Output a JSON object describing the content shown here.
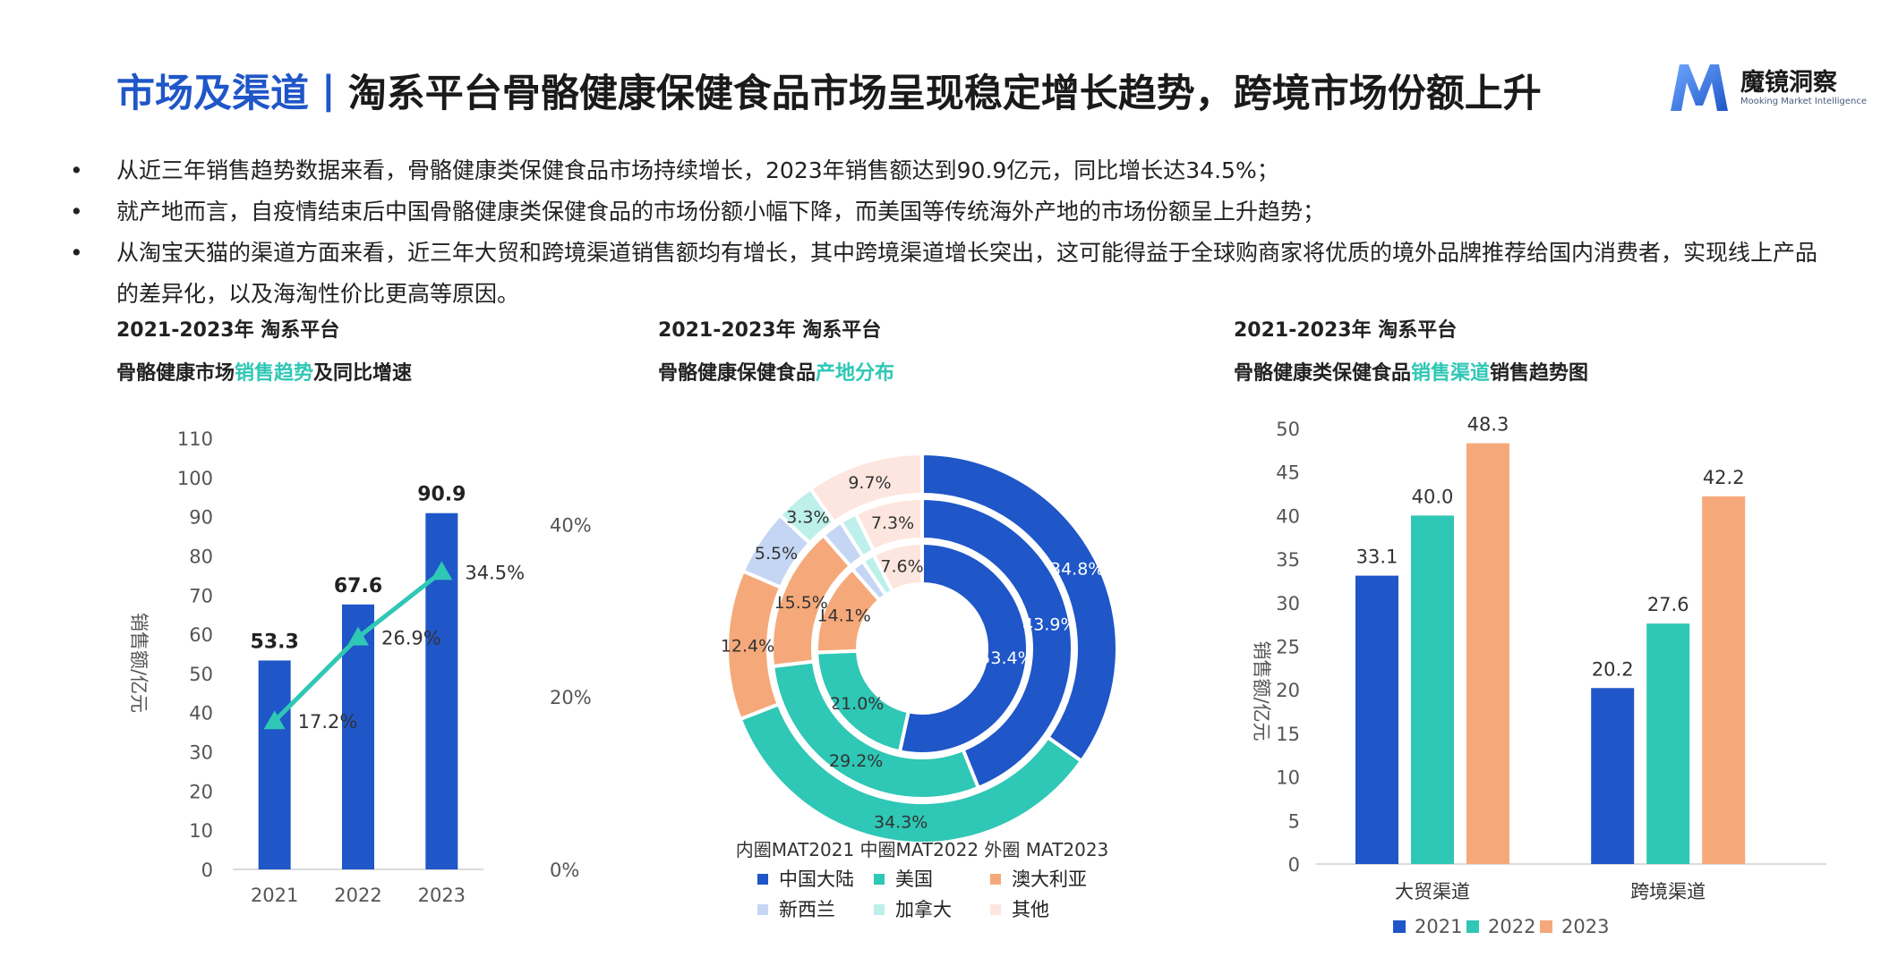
{
  "header": {
    "title_prefix": "市场及渠道",
    "title_divider": "|",
    "title_main": "淘系平台骨骼健康保健食品市场呈现稳定增长趋势，跨境市场份额上升",
    "logo_name": "魔镜洞察",
    "logo_tagline": "Mooking Market Intelligence"
  },
  "bullets": [
    {
      "marker": "•",
      "text": "从近三年销售趋势数据来看，骨骼健康类保健食品市场持续增长，2023年销售额达到90.9亿元，同比增长达34.5%；"
    },
    {
      "marker": "•",
      "text": "就产地而言，自疫情结束后中国骨骼健康类保健食品的市场份额小幅下降，而美国等传统海外产地的市场份额呈上升趋势；"
    },
    {
      "marker": "•",
      "text": "从淘宝天猫的渠道方面来看，近三年大贸和跨境渠道销售额均有增长，其中跨境渠道增长突出，这可能得益于全球购商家将优质的境外品牌推荐给国内消费者，实现线上产品的差异化，以及海淘性价比更高等原因。"
    }
  ],
  "colors": {
    "primary_blue": "#1f56c8",
    "teal": "#2fc7b5",
    "orange": "#f5a97a",
    "light_blue": "#c4d6f3",
    "light_teal": "#bdf0ea",
    "pink": "#fde6df",
    "axis_text": "#555555"
  },
  "panels": [
    {
      "line1": "2021-2023年 淘系平台",
      "line2_before": "骨骼健康市场",
      "line2_highlight": "销售趋势",
      "line2_after": "及同比增速"
    },
    {
      "line1": "2021-2023年 淘系平台",
      "line2_before": "骨骼健康保健食品",
      "line2_highlight": "产地分布",
      "line2_after": ""
    },
    {
      "line1": "2021-2023年 淘系平台",
      "line2_before": "骨骼健康类保健食品",
      "line2_highlight": "销售渠道",
      "line2_after": "销售趋势图"
    }
  ],
  "chart_data": [
    {
      "type": "bar",
      "categories": [
        "2021",
        "2022",
        "2023"
      ],
      "ylabel": "销售额/亿元",
      "ylim": [
        0,
        110
      ],
      "yticks": [
        "0",
        "10",
        "20",
        "30",
        "40",
        "50",
        "60",
        "70",
        "80",
        "90",
        "100",
        "110"
      ],
      "y2lim": [
        0,
        0.5
      ],
      "y2ticks": [
        {
          "value": 0,
          "label": "0%"
        },
        {
          "value": 0.2,
          "label": "20%"
        },
        {
          "value": 0.4,
          "label": "40%"
        }
      ],
      "series": [
        {
          "kind": "bar",
          "values": [
            53.3,
            67.6,
            90.9
          ],
          "labels": [
            "53.3",
            "67.6",
            "90.9"
          ],
          "color": "#1f56c8"
        },
        {
          "kind": "line",
          "axis": "secondary",
          "values": [
            0.172,
            0.269,
            0.345
          ],
          "labels": [
            "17.2%",
            "26.9%",
            "34.5%"
          ],
          "color": "#2fc7b5"
        }
      ],
      "grid": false
    },
    {
      "type": "pie",
      "style": "nested-donut",
      "caption": "内圈MAT2021 中圈MAT2022 外圈 MAT2023",
      "categories": [
        "中国大陆",
        "美国",
        "澳大利亚",
        "新西兰",
        "加拿大",
        "其他"
      ],
      "colors": [
        "#1f56c8",
        "#2fc7b5",
        "#f5a97a",
        "#c4d6f3",
        "#bdf0ea",
        "#fde6df"
      ],
      "rings": [
        {
          "name": "MAT2021",
          "values": [
            53.4,
            21.0,
            14.1,
            2.0,
            1.9,
            7.6
          ],
          "labels": [
            "53.4%",
            "21.0%",
            "14.1%",
            "",
            "",
            "7.6%"
          ]
        },
        {
          "name": "MAT2022",
          "values": [
            43.9,
            29.2,
            15.5,
            2.3,
            1.8,
            7.3
          ],
          "labels": [
            "43.9%",
            "29.2%",
            "15.5%",
            "",
            "",
            "7.3%"
          ]
        },
        {
          "name": "MAT2023",
          "values": [
            34.8,
            34.3,
            12.4,
            5.5,
            3.3,
            9.7
          ],
          "labels": [
            "34.8%",
            "34.3%",
            "12.4%",
            "5.5%",
            "3.3%",
            "9.7%"
          ]
        }
      ],
      "legend_position": "bottom"
    },
    {
      "type": "bar",
      "categories": [
        "大贸渠道",
        "跨境渠道"
      ],
      "ylabel": "销售额/亿元",
      "ylim": [
        0,
        50
      ],
      "yticks": [
        "0",
        "5",
        "10",
        "15",
        "20",
        "25",
        "30",
        "35",
        "40",
        "45",
        "50"
      ],
      "series": [
        {
          "name": "2021",
          "values": [
            33.1,
            20.2
          ],
          "labels": [
            "33.1",
            "20.2"
          ],
          "color": "#1f56c8"
        },
        {
          "name": "2022",
          "values": [
            40.0,
            27.6
          ],
          "labels": [
            "40.0",
            "27.6"
          ],
          "color": "#2fc7b5"
        },
        {
          "name": "2023",
          "values": [
            48.3,
            42.2
          ],
          "labels": [
            "48.3",
            "42.2"
          ],
          "color": "#f5a97a"
        }
      ],
      "legend_position": "bottom",
      "grid": false
    }
  ]
}
